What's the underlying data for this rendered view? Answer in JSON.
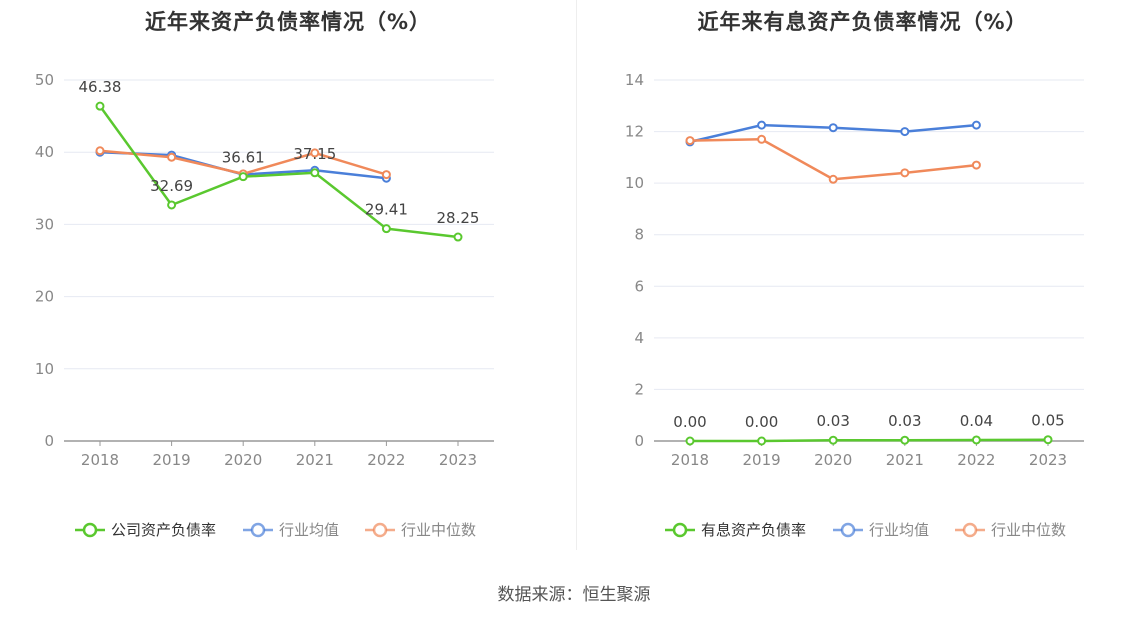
{
  "chart_data": [
    {
      "type": "line",
      "title": "近年来资产负债率情况（%）",
      "categories": [
        "2018",
        "2019",
        "2020",
        "2021",
        "2022",
        "2023"
      ],
      "ylim": [
        0,
        50
      ],
      "yticks": [
        0,
        10,
        20,
        30,
        40,
        50
      ],
      "grid": true,
      "legend_position": "bottom",
      "series": [
        {
          "name": "公司资产负债率",
          "color": "#5ac82f",
          "values": [
            46.38,
            32.69,
            36.61,
            37.15,
            29.41,
            28.25
          ],
          "labels": [
            "46.38",
            "32.69",
            "36.61",
            "37.15",
            "29.41",
            "28.25"
          ]
        },
        {
          "name": "行业均值",
          "color": "#4a7fd9",
          "values": [
            40.0,
            39.6,
            36.9,
            37.5,
            36.4,
            null
          ]
        },
        {
          "name": "行业中位数",
          "color": "#f0895a",
          "values": [
            40.2,
            39.3,
            37.0,
            39.9,
            36.9,
            null
          ]
        }
      ]
    },
    {
      "type": "line",
      "title": "近年来有息资产负债率情况（%）",
      "categories": [
        "2018",
        "2019",
        "2020",
        "2021",
        "2022",
        "2023"
      ],
      "ylim": [
        0,
        14
      ],
      "yticks": [
        0,
        2,
        4,
        6,
        8,
        10,
        12,
        14
      ],
      "grid": true,
      "legend_position": "bottom",
      "series": [
        {
          "name": "有息资产负债率",
          "color": "#5ac82f",
          "values": [
            0.0,
            0.0,
            0.03,
            0.03,
            0.04,
            0.05
          ],
          "labels": [
            "0.00",
            "0.00",
            "0.03",
            "0.03",
            "0.04",
            "0.05"
          ]
        },
        {
          "name": "行业均值",
          "color": "#4a7fd9",
          "values": [
            11.6,
            12.25,
            12.15,
            12.0,
            12.25,
            null
          ]
        },
        {
          "name": "行业中位数",
          "color": "#f0895a",
          "values": [
            11.65,
            11.7,
            10.15,
            10.4,
            10.7,
            null
          ]
        }
      ]
    }
  ],
  "source": "数据来源：恒生聚源"
}
